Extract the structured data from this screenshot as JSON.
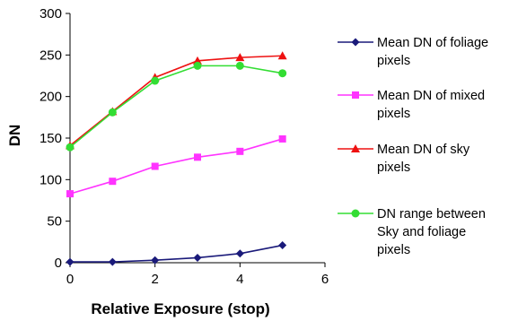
{
  "chart_data": {
    "type": "line",
    "title": "",
    "xlabel": "Relative Exposure (stop)",
    "ylabel": "DN",
    "xlim": [
      0,
      6
    ],
    "ylim": [
      0,
      300
    ],
    "xticks": [
      "0",
      "2",
      "4",
      "6"
    ],
    "yticks": [
      "0",
      "50",
      "100",
      "150",
      "200",
      "250",
      "300"
    ],
    "grid": false,
    "legend_position": "right",
    "x": [
      0,
      1,
      2,
      3,
      4,
      5
    ],
    "series": [
      {
        "name": "Mean DN of foliage pixels",
        "legend_lines": [
          "Mean DN of foliage",
          "pixels"
        ],
        "values": [
          1,
          1,
          3,
          6,
          11,
          21
        ],
        "color": "#1a1a7a",
        "marker": "diamond"
      },
      {
        "name": "Mean DN of mixed pixels",
        "legend_lines": [
          "Mean DN of mixed",
          "pixels"
        ],
        "values": [
          83,
          98,
          116,
          127,
          134,
          149
        ],
        "color": "#ff33ff",
        "marker": "square"
      },
      {
        "name": "Mean DN of sky pixels",
        "legend_lines": [
          "Mean DN of sky",
          "pixels"
        ],
        "values": [
          141,
          182,
          223,
          243,
          247,
          249
        ],
        "color": "#ee1111",
        "marker": "triangle"
      },
      {
        "name": "DN range between Sky and foliage pixels",
        "legend_lines": [
          "DN range between",
          "Sky and foliage",
          "pixels"
        ],
        "values": [
          139,
          181,
          219,
          237,
          237,
          228
        ],
        "color": "#33dd33",
        "marker": "circle"
      }
    ]
  }
}
